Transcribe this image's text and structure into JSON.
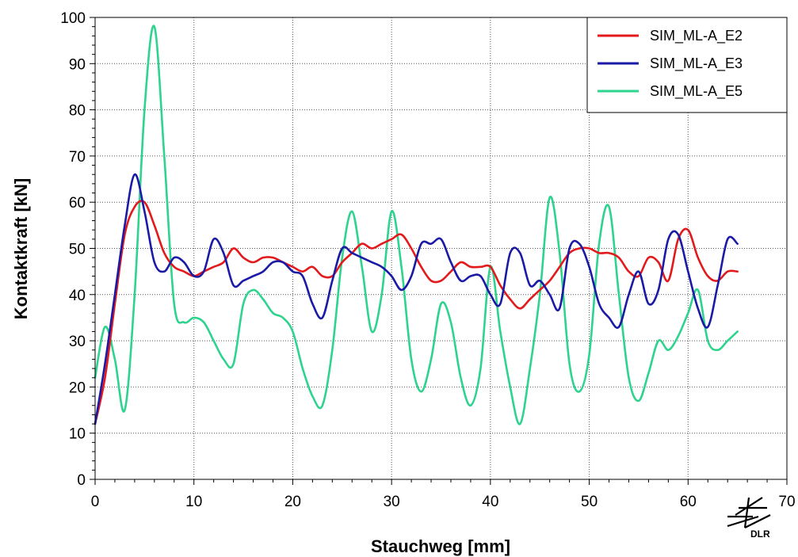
{
  "chart_data": {
    "type": "line",
    "title": "",
    "xlabel": "Stauchweg   [mm]",
    "ylabel": "Kontaktkraft   [kN]",
    "xlim": [
      0,
      70
    ],
    "ylim": [
      0,
      100
    ],
    "xticks": [
      0,
      10,
      20,
      30,
      40,
      50,
      60,
      70
    ],
    "yticks": [
      0,
      10,
      20,
      30,
      40,
      50,
      60,
      70,
      80,
      90,
      100
    ],
    "grid": true,
    "legend_position": "top-right",
    "series": [
      {
        "name": "SIM_ML-A_E2",
        "color": "#e31a1c",
        "x": [
          0,
          1,
          2,
          3,
          4,
          5,
          6,
          7,
          8,
          9,
          10,
          11,
          12,
          13,
          14,
          15,
          16,
          17,
          18,
          19,
          20,
          21,
          22,
          23,
          24,
          25,
          26,
          27,
          28,
          29,
          30,
          31,
          32,
          33,
          34,
          35,
          36,
          37,
          38,
          39,
          40,
          41,
          42,
          43,
          44,
          45,
          46,
          47,
          48,
          49,
          50,
          51,
          52,
          53,
          54,
          55,
          56,
          57,
          58,
          59,
          60,
          61,
          62,
          63,
          64,
          65
        ],
        "y": [
          12,
          22,
          38,
          53,
          59,
          60,
          55,
          49,
          46,
          45,
          44,
          45,
          46,
          47,
          50,
          48,
          47,
          48,
          48,
          47,
          46,
          45,
          46,
          44,
          44,
          47,
          49,
          51,
          50,
          51,
          52,
          53,
          50,
          46,
          43,
          43,
          45,
          47,
          46,
          46,
          46,
          42,
          39,
          37,
          39,
          41,
          43,
          46,
          49,
          50,
          50,
          49,
          49,
          48,
          45,
          44,
          48,
          47,
          43,
          52,
          54,
          48,
          44,
          43,
          45,
          45
        ]
      },
      {
        "name": "SIM_ML-A_E3",
        "color": "#1a1aa6",
        "x": [
          0,
          1,
          2,
          3,
          4,
          5,
          6,
          7,
          8,
          9,
          10,
          11,
          12,
          13,
          14,
          15,
          16,
          17,
          18,
          19,
          20,
          21,
          22,
          23,
          24,
          25,
          26,
          27,
          28,
          29,
          30,
          31,
          32,
          33,
          34,
          35,
          36,
          37,
          38,
          39,
          40,
          41,
          42,
          43,
          44,
          45,
          46,
          47,
          48,
          49,
          50,
          51,
          52,
          53,
          54,
          55,
          56,
          57,
          58,
          59,
          60,
          61,
          62,
          63,
          64,
          65
        ],
        "y": [
          12,
          25,
          40,
          55,
          66,
          58,
          47,
          45,
          48,
          47,
          44,
          45,
          52,
          49,
          42,
          43,
          44,
          45,
          47,
          47,
          45,
          44,
          38,
          35,
          43,
          50,
          49,
          48,
          47,
          46,
          44,
          41,
          44,
          51,
          51,
          52,
          47,
          43,
          44,
          44,
          40,
          38,
          49,
          49,
          42,
          43,
          40,
          37,
          50,
          51,
          46,
          38,
          35,
          33,
          40,
          45,
          38,
          41,
          52,
          53,
          45,
          37,
          33,
          42,
          52,
          51
        ]
      },
      {
        "name": "SIM_ML-A_E5",
        "color": "#2ed38e",
        "x": [
          0,
          1,
          2,
          3,
          4,
          5,
          6,
          7,
          8,
          9,
          10,
          11,
          12,
          13,
          14,
          15,
          16,
          17,
          18,
          19,
          20,
          21,
          22,
          23,
          24,
          25,
          26,
          27,
          28,
          29,
          30,
          31,
          32,
          33,
          34,
          35,
          36,
          37,
          38,
          39,
          40,
          41,
          42,
          43,
          44,
          45,
          46,
          47,
          48,
          49,
          50,
          51,
          52,
          53,
          54,
          55,
          56,
          57,
          58,
          59,
          60,
          61,
          62,
          63,
          64,
          65
        ],
        "y": [
          22,
          33,
          26,
          15,
          40,
          80,
          98,
          70,
          38,
          34,
          35,
          34,
          30,
          26,
          25,
          38,
          41,
          39,
          36,
          35,
          32,
          24,
          18,
          16,
          28,
          48,
          58,
          46,
          32,
          40,
          58,
          46,
          26,
          19,
          26,
          38,
          34,
          22,
          16,
          24,
          46,
          32,
          20,
          12,
          24,
          40,
          61,
          49,
          25,
          19,
          27,
          51,
          59,
          40,
          22,
          17,
          23,
          30,
          28,
          31,
          36,
          41,
          30,
          28,
          30,
          32
        ]
      }
    ]
  },
  "logo": {
    "text": "DLR"
  }
}
